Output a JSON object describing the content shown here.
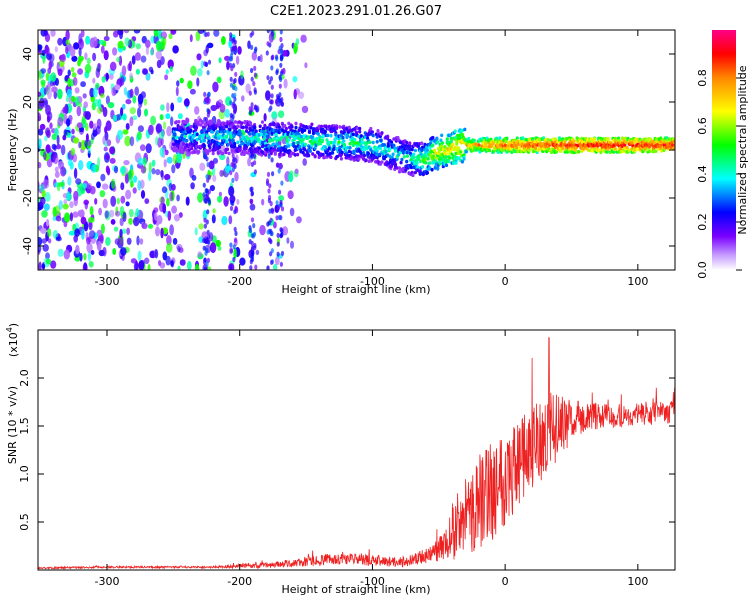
{
  "figure": {
    "title": "C2E1.2023.291.01.26.G07"
  },
  "chart_data": [
    {
      "type": "heatmap",
      "title": "C2E1.2023.291.01.26.G07",
      "xlabel": "Height of straight line (km)",
      "ylabel": "Frequency (Hz)",
      "xlim": [
        -352,
        128
      ],
      "ylim": [
        -50,
        50
      ],
      "x_ticks": [
        -300,
        -200,
        -100,
        0,
        100
      ],
      "y_ticks": [
        -40,
        -20,
        0,
        20,
        40
      ],
      "x_tick_labels": [
        "-300",
        "-200",
        "-100",
        "0",
        "100"
      ],
      "y_tick_labels": [
        "-40",
        "-20",
        "0",
        "20",
        "40"
      ],
      "colorbar": {
        "label": "Normalized spectral amplitude",
        "range": [
          0,
          1
        ],
        "ticks": [
          0.0,
          0.2,
          0.4,
          0.6,
          0.8
        ],
        "tick_labels": [
          "0.0",
          "0.2",
          "0.4",
          "0.6",
          "0.8"
        ],
        "colors": [
          "#ffffff",
          "#7a00ff",
          "#0000ff",
          "#00ffff",
          "#00ff00",
          "#ffff00",
          "#ff8800",
          "#ff0000",
          "#ff0088"
        ]
      },
      "signal_track": {
        "x": [
          -250,
          -200,
          -150,
          -120,
          -100,
          -80,
          -70,
          -60,
          -55,
          -45,
          -30,
          0,
          50,
          100,
          128
        ],
        "center_freq": [
          6,
          5,
          4,
          3,
          2,
          -2,
          -4,
          -4,
          -2,
          0,
          2,
          2,
          2,
          2,
          2
        ],
        "amplitude": [
          0.35,
          0.4,
          0.45,
          0.45,
          0.45,
          0.4,
          0.45,
          0.5,
          0.6,
          0.65,
          0.7,
          0.8,
          0.85,
          0.85,
          0.85
        ]
      },
      "noise_region": {
        "x_from": -352,
        "x_to": -160,
        "amplitude": [
          0.2,
          0.35
        ]
      }
    },
    {
      "type": "line",
      "xlabel": "Height of straight line (km)",
      "ylabel": "SNR (10 * v/v)",
      "y_scale_label": "(x10",
      "y_scale_exp": "4",
      "y_scale_close": ")",
      "xlim": [
        -352,
        128
      ],
      "ylim": [
        0,
        2.5
      ],
      "x_ticks": [
        -300,
        -200,
        -100,
        0,
        100
      ],
      "y_ticks": [
        0.5,
        1.0,
        1.5,
        2.0
      ],
      "x_tick_labels": [
        "-300",
        "-200",
        "-100",
        "0",
        "100"
      ],
      "y_tick_labels": [
        "0.5",
        "1.0",
        "1.5",
        "2.0"
      ],
      "series": [
        {
          "color": "#ee2020",
          "x": [
            -352,
            -300,
            -250,
            -220,
            -200,
            -180,
            -160,
            -140,
            -120,
            -100,
            -80,
            -70,
            -60,
            -50,
            -45,
            -40,
            -30,
            -20,
            -10,
            0,
            10,
            20,
            30,
            40,
            50,
            60,
            80,
            100,
            128
          ],
          "mean": [
            0.02,
            0.03,
            0.03,
            0.03,
            0.04,
            0.05,
            0.07,
            0.1,
            0.12,
            0.1,
            0.08,
            0.1,
            0.15,
            0.2,
            0.3,
            0.4,
            0.55,
            0.7,
            0.85,
            1.0,
            1.1,
            1.25,
            1.4,
            1.5,
            1.55,
            1.6,
            1.6,
            1.62,
            1.65
          ],
          "noise": [
            0.01,
            0.01,
            0.01,
            0.01,
            0.02,
            0.03,
            0.04,
            0.06,
            0.06,
            0.06,
            0.05,
            0.06,
            0.08,
            0.12,
            0.2,
            0.3,
            0.4,
            0.5,
            0.55,
            0.55,
            0.5,
            0.45,
            0.45,
            0.35,
            0.22,
            0.15,
            0.13,
            0.12,
            0.12
          ],
          "peak_x": 33,
          "peak_y": 2.42
        }
      ]
    }
  ]
}
